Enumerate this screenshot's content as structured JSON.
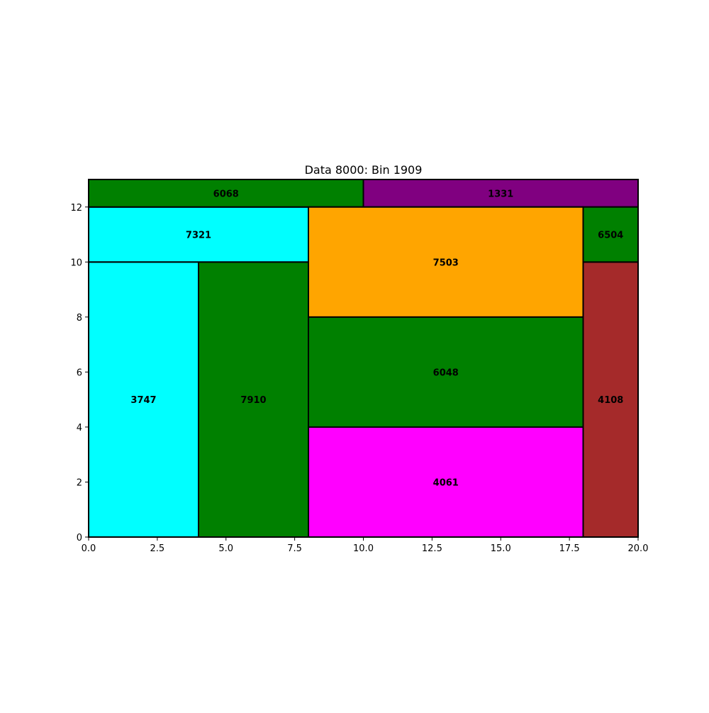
{
  "chart_data": {
    "type": "treemap",
    "title": "Data 8000: Bin 1909",
    "xlim": [
      0,
      20
    ],
    "ylim": [
      0,
      13
    ],
    "x_ticks": [
      {
        "value": 0,
        "label": "0.0"
      },
      {
        "value": 2.5,
        "label": "2.5"
      },
      {
        "value": 5,
        "label": "5.0"
      },
      {
        "value": 7.5,
        "label": "7.5"
      },
      {
        "value": 10,
        "label": "10.0"
      },
      {
        "value": 12.5,
        "label": "12.5"
      },
      {
        "value": 15,
        "label": "15.0"
      },
      {
        "value": 17.5,
        "label": "17.5"
      },
      {
        "value": 20,
        "label": "20.0"
      }
    ],
    "y_ticks": [
      {
        "value": 0,
        "label": "0"
      },
      {
        "value": 2,
        "label": "2"
      },
      {
        "value": 4,
        "label": "4"
      },
      {
        "value": 6,
        "label": "6"
      },
      {
        "value": 8,
        "label": "8"
      },
      {
        "value": 10,
        "label": "10"
      },
      {
        "value": 12,
        "label": "12"
      }
    ],
    "grid": false,
    "rectangles": [
      {
        "label": "3747",
        "x": 0,
        "y": 0,
        "width": 4,
        "height": 10,
        "color": "#00ffff"
      },
      {
        "label": "7910",
        "x": 4,
        "y": 0,
        "width": 4,
        "height": 10,
        "color": "#008000"
      },
      {
        "label": "7321",
        "x": 0,
        "y": 10,
        "width": 8,
        "height": 2,
        "color": "#00ffff"
      },
      {
        "label": "6068",
        "x": 0,
        "y": 12,
        "width": 10,
        "height": 1,
        "color": "#008000"
      },
      {
        "label": "1331",
        "x": 10,
        "y": 12,
        "width": 10,
        "height": 1,
        "color": "#800080"
      },
      {
        "label": "4061",
        "x": 8,
        "y": 0,
        "width": 10,
        "height": 4,
        "color": "#ff00ff"
      },
      {
        "label": "6048",
        "x": 8,
        "y": 4,
        "width": 10,
        "height": 4,
        "color": "#008000"
      },
      {
        "label": "7503",
        "x": 8,
        "y": 8,
        "width": 10,
        "height": 4,
        "color": "#ffa500"
      },
      {
        "label": "4108",
        "x": 18,
        "y": 0,
        "width": 2,
        "height": 10,
        "color": "#a52a2a"
      },
      {
        "label": "6504",
        "x": 18,
        "y": 10,
        "width": 2,
        "height": 2,
        "color": "#008000"
      }
    ]
  }
}
